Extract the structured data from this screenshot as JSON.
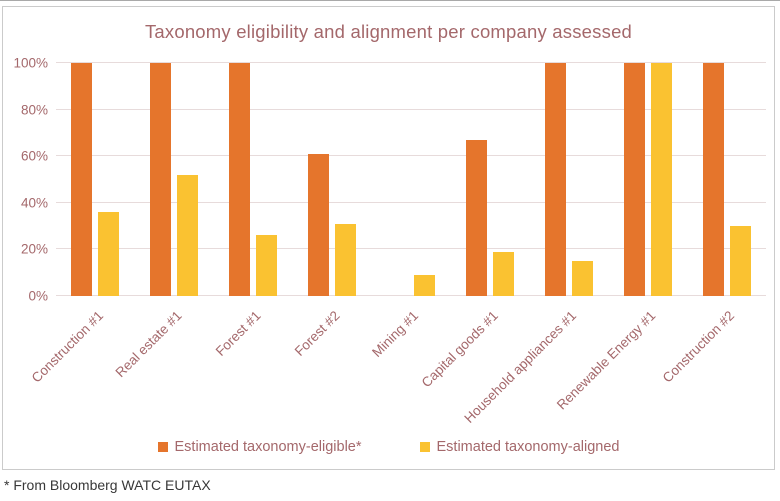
{
  "page": {
    "footnote": "* From Bloomberg WATC EUTAX"
  },
  "chart_data": {
    "type": "bar",
    "title": "Taxonomy eligibility and alignment per company assessed",
    "categories": [
      "Construction #1",
      "Real estate #1",
      "Forest #1",
      "Forest #2",
      "Mining #1",
      "Capital goods #1",
      "Household appliances #1",
      "Renewable Energy #1",
      "Construction #2"
    ],
    "series": [
      {
        "name": "Estimated taxonomy-eligible*",
        "color": "#e5752c",
        "values": [
          100,
          100,
          100,
          61,
          0,
          67,
          100,
          100,
          100
        ]
      },
      {
        "name": "Estimated taxonomy-aligned",
        "color": "#fac231",
        "values": [
          36,
          52,
          26,
          31,
          9,
          19,
          15,
          100,
          30
        ]
      }
    ],
    "xlabel": "",
    "ylabel": "",
    "ylim": [
      0,
      100
    ],
    "yticks": [
      0,
      20,
      40,
      60,
      80,
      100
    ],
    "ytick_labels": [
      "0%",
      "20%",
      "40%",
      "60%",
      "80%",
      "100%"
    ],
    "grid": true,
    "legend_position": "bottom",
    "colors": {
      "text": "#a4686b",
      "gridline": "#e7dbdb",
      "frame_border": "#cbcbcb",
      "footnote_text": "#383838"
    }
  }
}
